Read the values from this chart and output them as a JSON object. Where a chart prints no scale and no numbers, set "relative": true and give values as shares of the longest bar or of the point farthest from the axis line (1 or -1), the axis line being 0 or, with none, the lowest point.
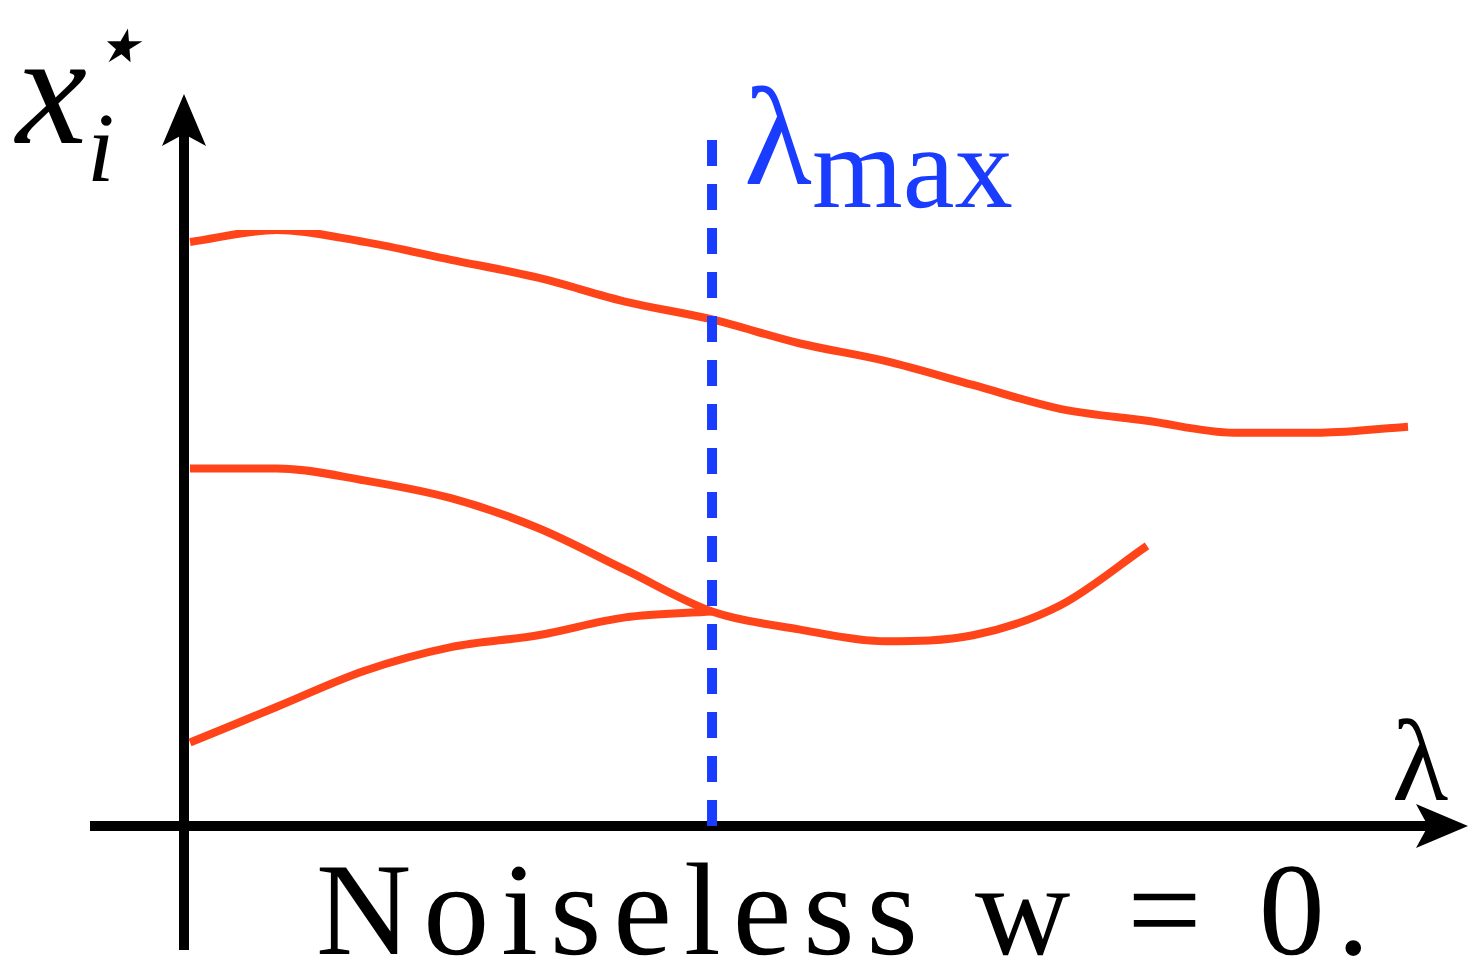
{
  "chart_data": {
    "type": "line",
    "relative": true,
    "legend": false,
    "tick_labels": false,
    "marker": "none",
    "ylabel": "x$_{i}$$^{⋆}$",
    "xlabel": "λ",
    "annotations": [
      "λ$_{max}$",
      "Noiseless w = 0."
    ],
    "categories": [
      null,
      null,
      null,
      null,
      null,
      null,
      null,
      null,
      null,
      null,
      null,
      null,
      null,
      null,
      null
    ],
    "series": [
      {
        "color": "#ff4419",
        "values": [
          0.98,
          1.0,
          0.98,
          0.95,
          0.92,
          0.88,
          0.85,
          0.81,
          0.78,
          0.74,
          0.7,
          0.68,
          0.66,
          0.66,
          0.67
        ]
      },
      {
        "color": "#ff4419",
        "values": [
          0.6,
          0.6,
          0.58,
          0.55,
          0.5,
          0.43,
          0.36,
          0.33,
          0.31,
          0.32,
          0.37,
          0.47,
          null,
          null,
          null
        ]
      },
      {
        "color": "#ff4419",
        "values": [
          0.14,
          0.2,
          0.26,
          0.3,
          0.32,
          0.35,
          0.36,
          null,
          null,
          null,
          null,
          null,
          null,
          null,
          null
        ]
      }
    ]
  }
}
